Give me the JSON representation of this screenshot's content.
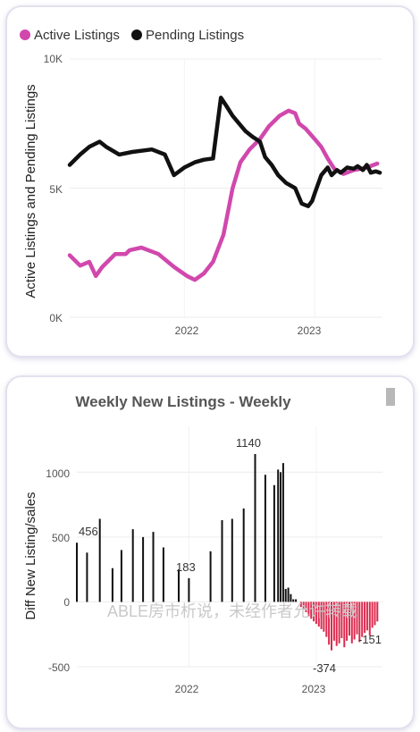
{
  "charts": [
    {
      "legend": [
        {
          "label": "Active Listings",
          "color": "#d148ad"
        },
        {
          "label": "Pending Listings",
          "color": "#111111"
        }
      ],
      "ylabel": "Active Listings and Pending Listings",
      "yticks": [
        "10K",
        "5K",
        "0K"
      ],
      "xticks": [
        "2022",
        "2023"
      ]
    },
    {
      "title": "Weekly New Listings - Weekly",
      "ylabel": "Diff New Listing/sales",
      "yticks": [
        "1000",
        "500",
        "0",
        "-500"
      ],
      "xticks": [
        "2022",
        "2023"
      ],
      "watermark": "ABLE房市析说，未经作者允许转载",
      "labels": {
        "first": "456",
        "mid": "183",
        "peak": "1140",
        "min": "-374",
        "last": "-151"
      }
    }
  ],
  "chart_data": [
    {
      "type": "line",
      "ylim": [
        0,
        10000
      ],
      "xlim": [
        2021.12,
        2023.52
      ],
      "legend_position": "top-left",
      "series": [
        {
          "name": "Active Listings",
          "color": "#d148ad",
          "x": [
            2021.12,
            2021.2,
            2021.27,
            2021.32,
            2021.37,
            2021.47,
            2021.55,
            2021.58,
            2021.67,
            2021.8,
            2021.92,
            2022.02,
            2022.08,
            2022.15,
            2022.22,
            2022.3,
            2022.37,
            2022.43,
            2022.5,
            2022.58,
            2022.65,
            2022.73,
            2022.8,
            2022.85,
            2022.88,
            2022.93,
            2023.0,
            2023.05,
            2023.1,
            2023.15,
            2023.22,
            2023.3,
            2023.4,
            2023.48
          ],
          "y": [
            2400,
            2000,
            2150,
            1600,
            1950,
            2450,
            2450,
            2600,
            2700,
            2450,
            1950,
            1600,
            1450,
            1700,
            2150,
            3200,
            5000,
            6000,
            6500,
            6900,
            7400,
            7800,
            8000,
            7900,
            7500,
            7300,
            6900,
            6600,
            6150,
            5750,
            5550,
            5700,
            5800,
            5950
          ]
        },
        {
          "name": "Pending Listings",
          "color": "#111111",
          "x": [
            2021.12,
            2021.2,
            2021.27,
            2021.35,
            2021.4,
            2021.5,
            2021.6,
            2021.75,
            2021.85,
            2021.92,
            2022.0,
            2022.08,
            2022.15,
            2022.22,
            2022.28,
            2022.32,
            2022.37,
            2022.42,
            2022.47,
            2022.52,
            2022.58,
            2022.62,
            2022.67,
            2022.72,
            2022.78,
            2022.85,
            2022.9,
            2022.95,
            2022.98,
            2023.0,
            2023.05,
            2023.1,
            2023.13,
            2023.17,
            2023.2,
            2023.25,
            2023.3,
            2023.33,
            2023.37,
            2023.4,
            2023.43,
            2023.47,
            2023.5
          ],
          "y": [
            5900,
            6300,
            6600,
            6800,
            6600,
            6300,
            6400,
            6500,
            6300,
            5500,
            5800,
            6000,
            6100,
            6150,
            8500,
            8200,
            7800,
            7500,
            7200,
            7000,
            6800,
            6200,
            5900,
            5500,
            5200,
            5000,
            4400,
            4300,
            4500,
            4800,
            5500,
            5800,
            5500,
            5700,
            5600,
            5800,
            5750,
            5850,
            5700,
            5900,
            5600,
            5650,
            5600
          ]
        }
      ]
    },
    {
      "type": "bar",
      "title": "Weekly New Listings - Weekly",
      "ylim": [
        -500,
        1250
      ],
      "xlim": [
        2021.12,
        2023.52
      ],
      "bars_positive": {
        "color": "#111111",
        "x": [
          2021.12,
          2021.2,
          2021.3,
          2021.4,
          2021.47,
          2021.56,
          2021.64,
          2021.72,
          2021.8,
          2021.92,
          2022.0,
          2022.17,
          2022.26,
          2022.34,
          2022.43,
          2022.52,
          2022.6,
          2022.67,
          2022.7,
          2022.72,
          2022.74,
          2022.76,
          2022.78,
          2022.8,
          2022.82,
          2022.84
        ],
        "values": [
          456,
          380,
          640,
          260,
          400,
          560,
          500,
          540,
          420,
          250,
          183,
          390,
          630,
          640,
          720,
          1140,
          980,
          900,
          1020,
          1000,
          1070,
          100,
          110,
          60,
          20,
          20
        ]
      },
      "bars_negative": {
        "color": "#dc2a4e",
        "x": [
          2022.88,
          2022.9,
          2022.92,
          2022.94,
          2022.96,
          2022.98,
          2023.0,
          2023.02,
          2023.04,
          2023.06,
          2023.08,
          2023.1,
          2023.12,
          2023.14,
          2023.16,
          2023.18,
          2023.2,
          2023.22,
          2023.24,
          2023.26,
          2023.28,
          2023.3,
          2023.32,
          2023.34,
          2023.36,
          2023.38,
          2023.4,
          2023.42,
          2023.44,
          2023.46,
          2023.48
        ],
        "values": [
          -40,
          -60,
          -80,
          -110,
          -130,
          -150,
          -170,
          -190,
          -210,
          -230,
          -270,
          -330,
          -374,
          -300,
          -340,
          -320,
          -280,
          -350,
          -300,
          -260,
          -320,
          -290,
          -250,
          -310,
          -270,
          -240,
          -220,
          -260,
          -200,
          -180,
          -151
        ]
      }
    }
  ]
}
